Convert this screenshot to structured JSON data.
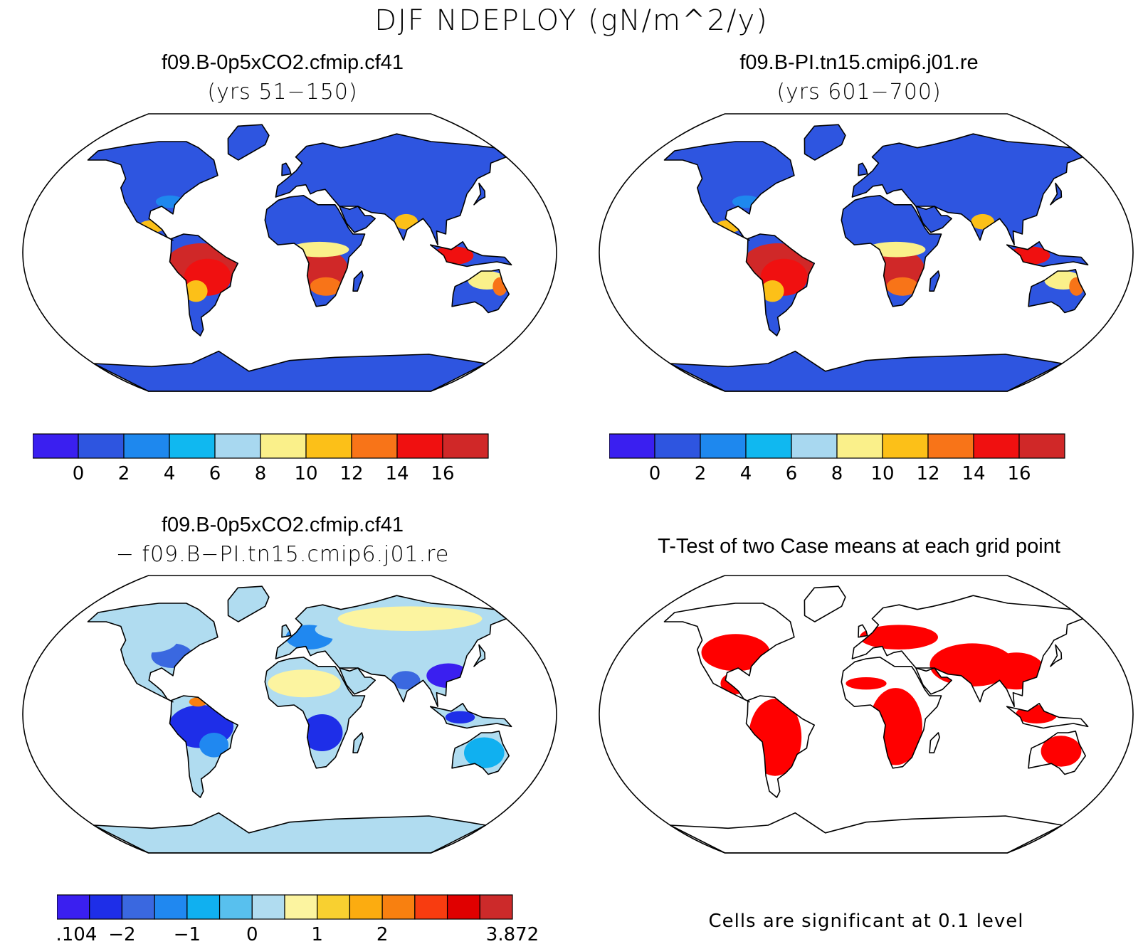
{
  "figure": {
    "title": "DJF NDEPLOY (gN/m^2/y)"
  },
  "panels": [
    {
      "title": "f09.B-0p5xCO2.cfmip.cf41",
      "subtitle": "(yrs 51−150)",
      "theme": "high",
      "colorbar": {
        "colors": [
          "#3a1ff0",
          "#2e55e0",
          "#1e88ee",
          "#10b8f0",
          "#a8d8f0",
          "#faf08a",
          "#fcc018",
          "#f87418",
          "#f01010",
          "#d02828"
        ],
        "tick_labels": [
          "0",
          "2",
          "4",
          "6",
          "8",
          "10",
          "12",
          "14",
          "16"
        ]
      }
    },
    {
      "title": "f09.B-PI.tn15.cmip6.j01.re",
      "subtitle": "(yrs 601−700)",
      "theme": "high",
      "colorbar": {
        "colors": [
          "#3a1ff0",
          "#2e55e0",
          "#1e88ee",
          "#10b8f0",
          "#a8d8f0",
          "#faf08a",
          "#fcc018",
          "#f87418",
          "#f01010",
          "#d02828"
        ],
        "tick_labels": [
          "0",
          "2",
          "4",
          "6",
          "8",
          "10",
          "12",
          "14",
          "16"
        ]
      }
    },
    {
      "title": "f09.B-0p5xCO2.cfmip.cf41",
      "subtitle": "− f09.B−PI.tn15.cmip6.j01.re",
      "theme": "diff",
      "colorbar": {
        "colors": [
          "#3a1ff0",
          "#1e2ee8",
          "#3a68e0",
          "#2088f0",
          "#10b0f0",
          "#58c0ee",
          "#b0dcf0",
          "#fcf4a0",
          "#f8d030",
          "#fcac10",
          "#f88010",
          "#f83c10",
          "#e00000",
          "#cc2a2a"
        ],
        "tick_labels": [
          "−21.104",
          "−2",
          "−1",
          "0",
          "1",
          "2",
          "3.872"
        ]
      }
    },
    {
      "title": "T-Test of two Case means at each grid point",
      "theme": "ttest",
      "note": "Cells are significant at 0.1 level"
    }
  ],
  "chart_data": [
    {
      "type": "heatmap",
      "title": "f09.B-0p5xCO2.cfmip.cf41",
      "subtitle": "(yrs 51−150)",
      "variable": "DJF NDEPLOY (gN/m^2/y)",
      "colorbar_ticks": [
        0,
        2,
        4,
        6,
        8,
        10,
        12,
        14,
        16
      ],
      "projection": "Robinson, global",
      "regions": [
        {
          "region": "Amazon / central South America",
          "level": "14–16+"
        },
        {
          "region": "Southern-central Africa",
          "level": "14–16+"
        },
        {
          "region": "Southeast Asia / Indonesia",
          "level": "12–16"
        },
        {
          "region": "Northern Australia",
          "level": "6–12"
        },
        {
          "region": "North America, Eurasia, North Africa, Antarctica",
          "level": "0–2"
        }
      ]
    },
    {
      "type": "heatmap",
      "title": "f09.B-PI.tn15.cmip6.j01.re",
      "subtitle": "(yrs 601−700)",
      "variable": "DJF NDEPLOY (gN/m^2/y)",
      "colorbar_ticks": [
        0,
        2,
        4,
        6,
        8,
        10,
        12,
        14,
        16
      ],
      "projection": "Robinson, global",
      "regions": [
        {
          "region": "Amazon / central South America",
          "level": "16+"
        },
        {
          "region": "Southern-central Africa",
          "level": "16+"
        },
        {
          "region": "Southeast Asia / Indonesia",
          "level": "14–16+"
        },
        {
          "region": "Northern Australia",
          "level": "8–14"
        },
        {
          "region": "North America, Eurasia, North Africa, Antarctica",
          "level": "0–2"
        }
      ]
    },
    {
      "type": "heatmap",
      "title": "f09.B-0p5xCO2.cfmip.cf41",
      "subtitle": "− f09.B−PI.tn15.cmip6.j01.re",
      "variable": "difference",
      "colorbar_ticks": [
        -21.104,
        -2,
        -1,
        0,
        1,
        2,
        3.872
      ],
      "projection": "Robinson, global",
      "regions": [
        {
          "region": "Amazon / Southern Africa / Southeast Asia",
          "level": "− 2 to −21.104"
        },
        {
          "region": "Eastern USA, Europe, South Asia",
          "level": "−1 to −2"
        },
        {
          "region": "Sahara, Arctic, Antarctica",
          "level": "0 to 1"
        }
      ]
    },
    {
      "type": "heatmap",
      "title": "T-Test of two Case means at each grid point",
      "note": "Cells are significant at 0.1 level",
      "projection": "Robinson, global",
      "significant_regions": [
        "Americas (except high latitudes)",
        "Africa south of Sahara",
        "Europe",
        "South & East Asia",
        "Australia"
      ]
    }
  ]
}
